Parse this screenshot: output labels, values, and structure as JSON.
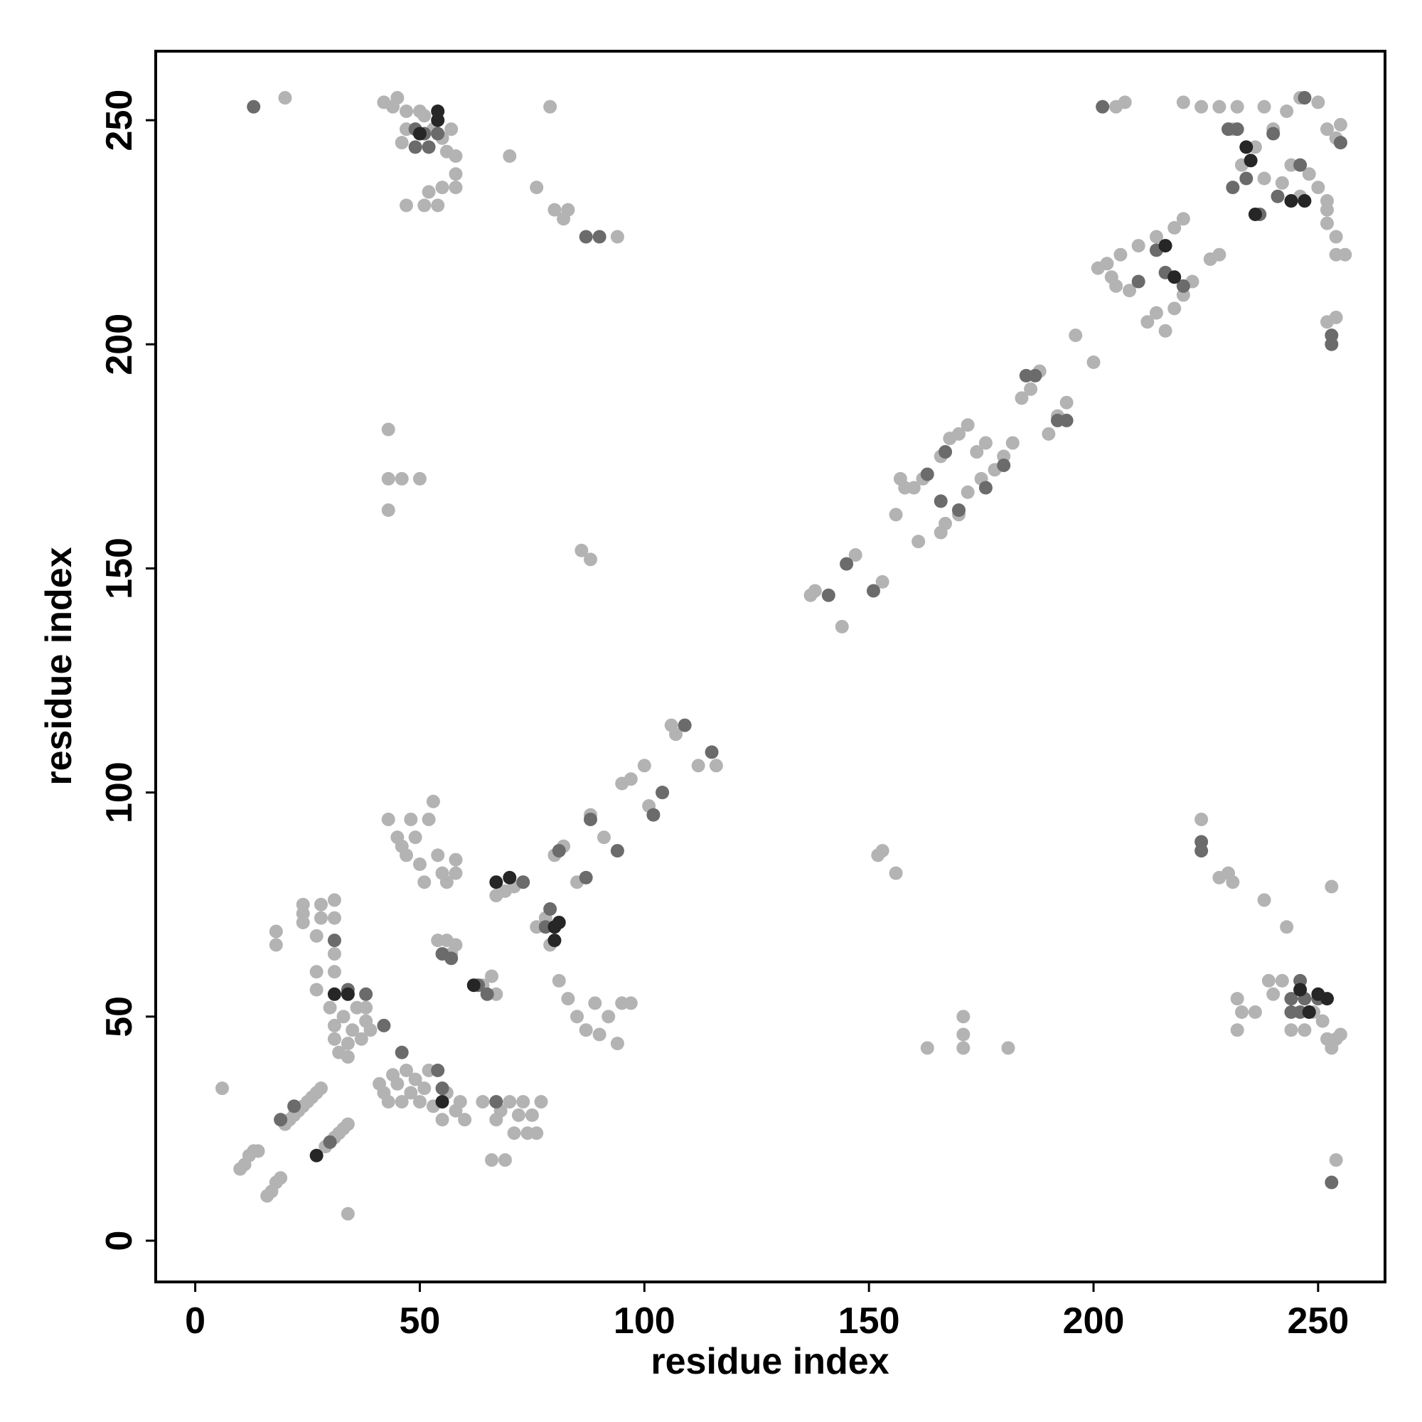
{
  "chart_data": {
    "type": "scatter",
    "xlabel": "residue index",
    "ylabel": "residue index",
    "xlim": [
      -8.8,
      264.9
    ],
    "ylim": [
      -9.2,
      265.4
    ],
    "xticks": [
      0,
      50,
      100,
      150,
      200,
      250
    ],
    "yticks": [
      0,
      50,
      100,
      150,
      200,
      250
    ],
    "series": [
      {
        "color": "#b3b3b3",
        "x": [
          6,
          10,
          11,
          12,
          13,
          14,
          16,
          17,
          18,
          19,
          20,
          21,
          22,
          23,
          24,
          25,
          26,
          27,
          28,
          29,
          30,
          31,
          32,
          33,
          34,
          34,
          18,
          18,
          24,
          24,
          24,
          27,
          28,
          28,
          27,
          27,
          31,
          31,
          31,
          31,
          30,
          31,
          31,
          32,
          33,
          34,
          34,
          35,
          36,
          37,
          38,
          38,
          39,
          41,
          42,
          43,
          44,
          45,
          46,
          47,
          48,
          49,
          50,
          51,
          52,
          53,
          55,
          56,
          58,
          59,
          60,
          64,
          66,
          67,
          68,
          69,
          70,
          71,
          72,
          73,
          74,
          75,
          76,
          77,
          43,
          45,
          46,
          47,
          48,
          49,
          50,
          51,
          52,
          53,
          54,
          55,
          56,
          58,
          58,
          54,
          56,
          58,
          57,
          64,
          66,
          67,
          67,
          69,
          71,
          76,
          78,
          79,
          80,
          82,
          85,
          88,
          91,
          95,
          97,
          100,
          101,
          104,
          106,
          107,
          112,
          116,
          81,
          83,
          85,
          87,
          89,
          90,
          92,
          94,
          95,
          97,
          86,
          88,
          43,
          43,
          46,
          50,
          43,
          42,
          44,
          45,
          47,
          46,
          47,
          50,
          51,
          53,
          55,
          56,
          57,
          58,
          58,
          58,
          55,
          52,
          51,
          47,
          54,
          20,
          79,
          70,
          76,
          80,
          82,
          83,
          94,
          137,
          138,
          144,
          147,
          153,
          156,
          161,
          157,
          158,
          160,
          162,
          166,
          168,
          170,
          172,
          174,
          176,
          166,
          167,
          170,
          172,
          175,
          178,
          180,
          182,
          184,
          186,
          188,
          190,
          192,
          194,
          196,
          200,
          201,
          203,
          204,
          205,
          206,
          208,
          210,
          212,
          214,
          216,
          218,
          220,
          214,
          218,
          220,
          222,
          226,
          228,
          205,
          207,
          220,
          224,
          228,
          232,
          238,
          243,
          246,
          250,
          233,
          236,
          238,
          240,
          242,
          244,
          246,
          248,
          250,
          252,
          252,
          254,
          255,
          252,
          252,
          254,
          254,
          256,
          252,
          254,
          231,
          152,
          153,
          156,
          163,
          171,
          171,
          171,
          181,
          224,
          228,
          230,
          231,
          232,
          232,
          233,
          236,
          238,
          239,
          240,
          242,
          243,
          244,
          247,
          249,
          251,
          252,
          253,
          254,
          255,
          253,
          254
        ],
        "values": [
          34,
          16,
          17,
          19,
          20,
          20,
          10,
          11,
          13,
          14,
          26,
          27,
          28,
          29,
          30,
          31,
          32,
          33,
          34,
          21,
          22,
          23,
          24,
          25,
          26,
          6,
          66,
          69,
          71,
          73,
          75,
          68,
          72,
          75,
          60,
          56,
          60,
          64,
          72,
          76,
          52,
          48,
          45,
          42,
          50,
          44,
          41,
          47,
          52,
          45,
          49,
          52,
          47,
          35,
          33,
          31,
          37,
          35,
          31,
          38,
          33,
          36,
          31,
          34,
          38,
          30,
          27,
          33,
          29,
          31,
          27,
          31,
          18,
          27,
          29,
          18,
          31,
          24,
          28,
          31,
          24,
          28,
          24,
          31,
          94,
          90,
          88,
          86,
          94,
          90,
          84,
          80,
          94,
          98,
          86,
          82,
          80,
          85,
          82,
          67,
          67,
          66,
          64,
          57,
          59,
          55,
          77,
          78,
          79,
          70,
          72,
          66,
          86,
          88,
          80,
          95,
          90,
          102,
          103,
          106,
          97,
          100,
          115,
          113,
          106,
          106,
          58,
          54,
          50,
          47,
          53,
          46,
          50,
          44,
          53,
          53,
          154,
          152,
          181,
          170,
          170,
          170,
          163,
          254,
          253,
          255,
          252,
          245,
          248,
          252,
          251,
          248,
          246,
          243,
          248,
          242,
          238,
          235,
          235,
          234,
          231,
          231,
          231,
          255,
          253,
          242,
          235,
          230,
          228,
          230,
          224,
          144,
          145,
          137,
          153,
          147,
          162,
          156,
          170,
          168,
          168,
          170,
          175,
          179,
          180,
          182,
          176,
          178,
          158,
          160,
          162,
          167,
          170,
          172,
          175,
          178,
          188,
          190,
          194,
          180,
          184,
          187,
          202,
          196,
          217,
          218,
          215,
          213,
          220,
          212,
          222,
          205,
          207,
          203,
          208,
          211,
          224,
          226,
          228,
          214,
          219,
          220,
          253,
          254,
          254,
          253,
          253,
          253,
          253,
          252,
          255,
          254,
          240,
          244,
          237,
          248,
          236,
          240,
          233,
          238,
          235,
          232,
          248,
          246,
          249,
          230,
          227,
          224,
          220,
          220,
          205,
          206,
          248,
          86,
          87,
          82,
          43,
          43,
          46,
          50,
          43,
          94,
          81,
          82,
          80,
          54,
          47,
          51,
          51,
          76,
          58,
          55,
          58,
          70,
          47,
          47,
          51,
          49,
          45,
          43,
          45,
          46,
          79,
          18
        ]
      },
      {
        "color": "#6b6b6b",
        "x": [
          19,
          22,
          30,
          31,
          34,
          38,
          42,
          46,
          54,
          55,
          67,
          55,
          57,
          63,
          65,
          73,
          79,
          81,
          87,
          88,
          94,
          102,
          104,
          109,
          115,
          78,
          13,
          49,
          51,
          49,
          52,
          54,
          87,
          90,
          141,
          145,
          151,
          163,
          166,
          167,
          170,
          176,
          180,
          185,
          187,
          192,
          194,
          210,
          214,
          216,
          220,
          202,
          230,
          232,
          231,
          234,
          237,
          240,
          241,
          246,
          247,
          255,
          253,
          253,
          224,
          224,
          244,
          244,
          246,
          246,
          247,
          248,
          250,
          253
        ],
        "values": [
          27,
          30,
          22,
          67,
          56,
          55,
          48,
          42,
          38,
          34,
          31,
          64,
          63,
          57,
          55,
          80,
          74,
          87,
          81,
          94,
          87,
          95,
          100,
          115,
          109,
          70,
          253,
          244,
          247,
          248,
          244,
          247,
          224,
          224,
          144,
          151,
          145,
          171,
          165,
          176,
          163,
          168,
          173,
          193,
          193,
          183,
          183,
          214,
          221,
          216,
          213,
          253,
          248,
          248,
          235,
          237,
          229,
          247,
          233,
          240,
          255,
          245,
          200,
          202,
          89,
          87,
          54,
          51,
          58,
          51,
          54,
          51,
          54,
          13
        ]
      },
      {
        "color": "#262626",
        "x": [
          31,
          34,
          55,
          27,
          62,
          67,
          70,
          80,
          80,
          81,
          50,
          54,
          54,
          216,
          218,
          234,
          235,
          236,
          244,
          247,
          246,
          250,
          252,
          248
        ],
        "values": [
          55,
          55,
          31,
          19,
          57,
          80,
          81,
          70,
          67,
          71,
          247,
          250,
          252,
          222,
          215,
          244,
          241,
          229,
          232,
          232,
          56,
          55,
          54,
          51
        ]
      }
    ]
  }
}
